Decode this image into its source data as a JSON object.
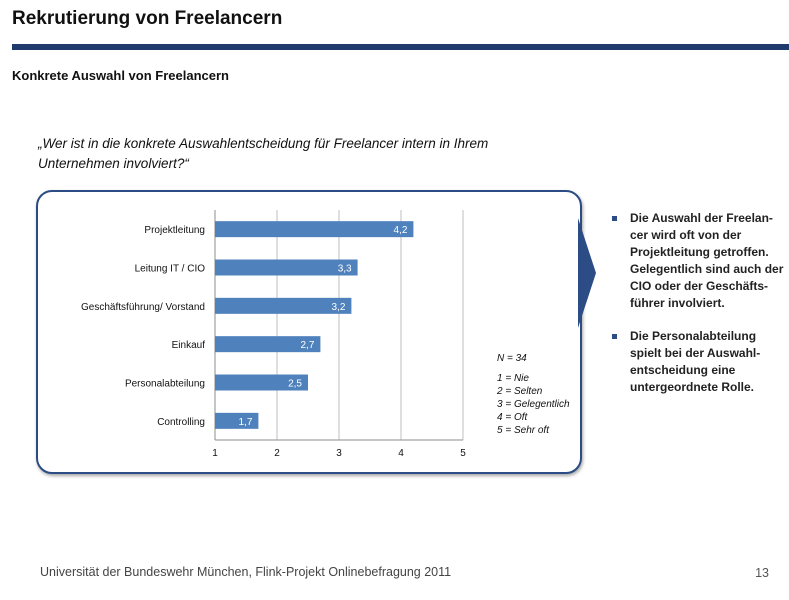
{
  "header": {
    "title": "Rekrutierung von Freelancern",
    "subtitle": "Konkrete Auswahl von Freelancern"
  },
  "question": "„Wer ist in die konkrete Auswahlentscheidung für Freelancer intern in Ihrem Unternehmen involviert?“",
  "colors": {
    "accent": "#1f3a6b",
    "bar": "#4f81bd",
    "box_border": "#2b4c84"
  },
  "chart_data": {
    "type": "bar",
    "orientation": "horizontal",
    "categories": [
      "Projektleitung",
      "Leitung IT / CIO",
      "Geschäftsführung/ Vorstand",
      "Einkauf",
      "Personalabteilung",
      "Controlling"
    ],
    "values": [
      4.2,
      3.3,
      3.2,
      2.7,
      2.5,
      1.7
    ],
    "value_labels": [
      "4,2",
      "3,3",
      "3,2",
      "2,7",
      "2,5",
      "1,7"
    ],
    "xlim": [
      1,
      5
    ],
    "xticks": [
      "1",
      "2",
      "3",
      "4",
      "5"
    ],
    "grid": "vertical",
    "title": "",
    "xlabel": "",
    "ylabel": ""
  },
  "legend": {
    "n": "N = 34",
    "scale": [
      "1 = Nie",
      "2 = Selten",
      "3 = Gelegentlich",
      "4 = Oft",
      "5 = Sehr oft"
    ]
  },
  "bullets": [
    "Die Auswahl der Freelan-cer wird oft von der Projektleitung getroffen. Gelegentlich sind auch der CIO oder der Geschäfts-führer involviert.",
    "Die Personalabteilung spielt bei der Auswahl-entscheidung eine untergeordnete Rolle."
  ],
  "footer": {
    "text": "Universität der Bundeswehr München, Flink-Projekt Onlinebefragung  2011",
    "page": "13"
  }
}
